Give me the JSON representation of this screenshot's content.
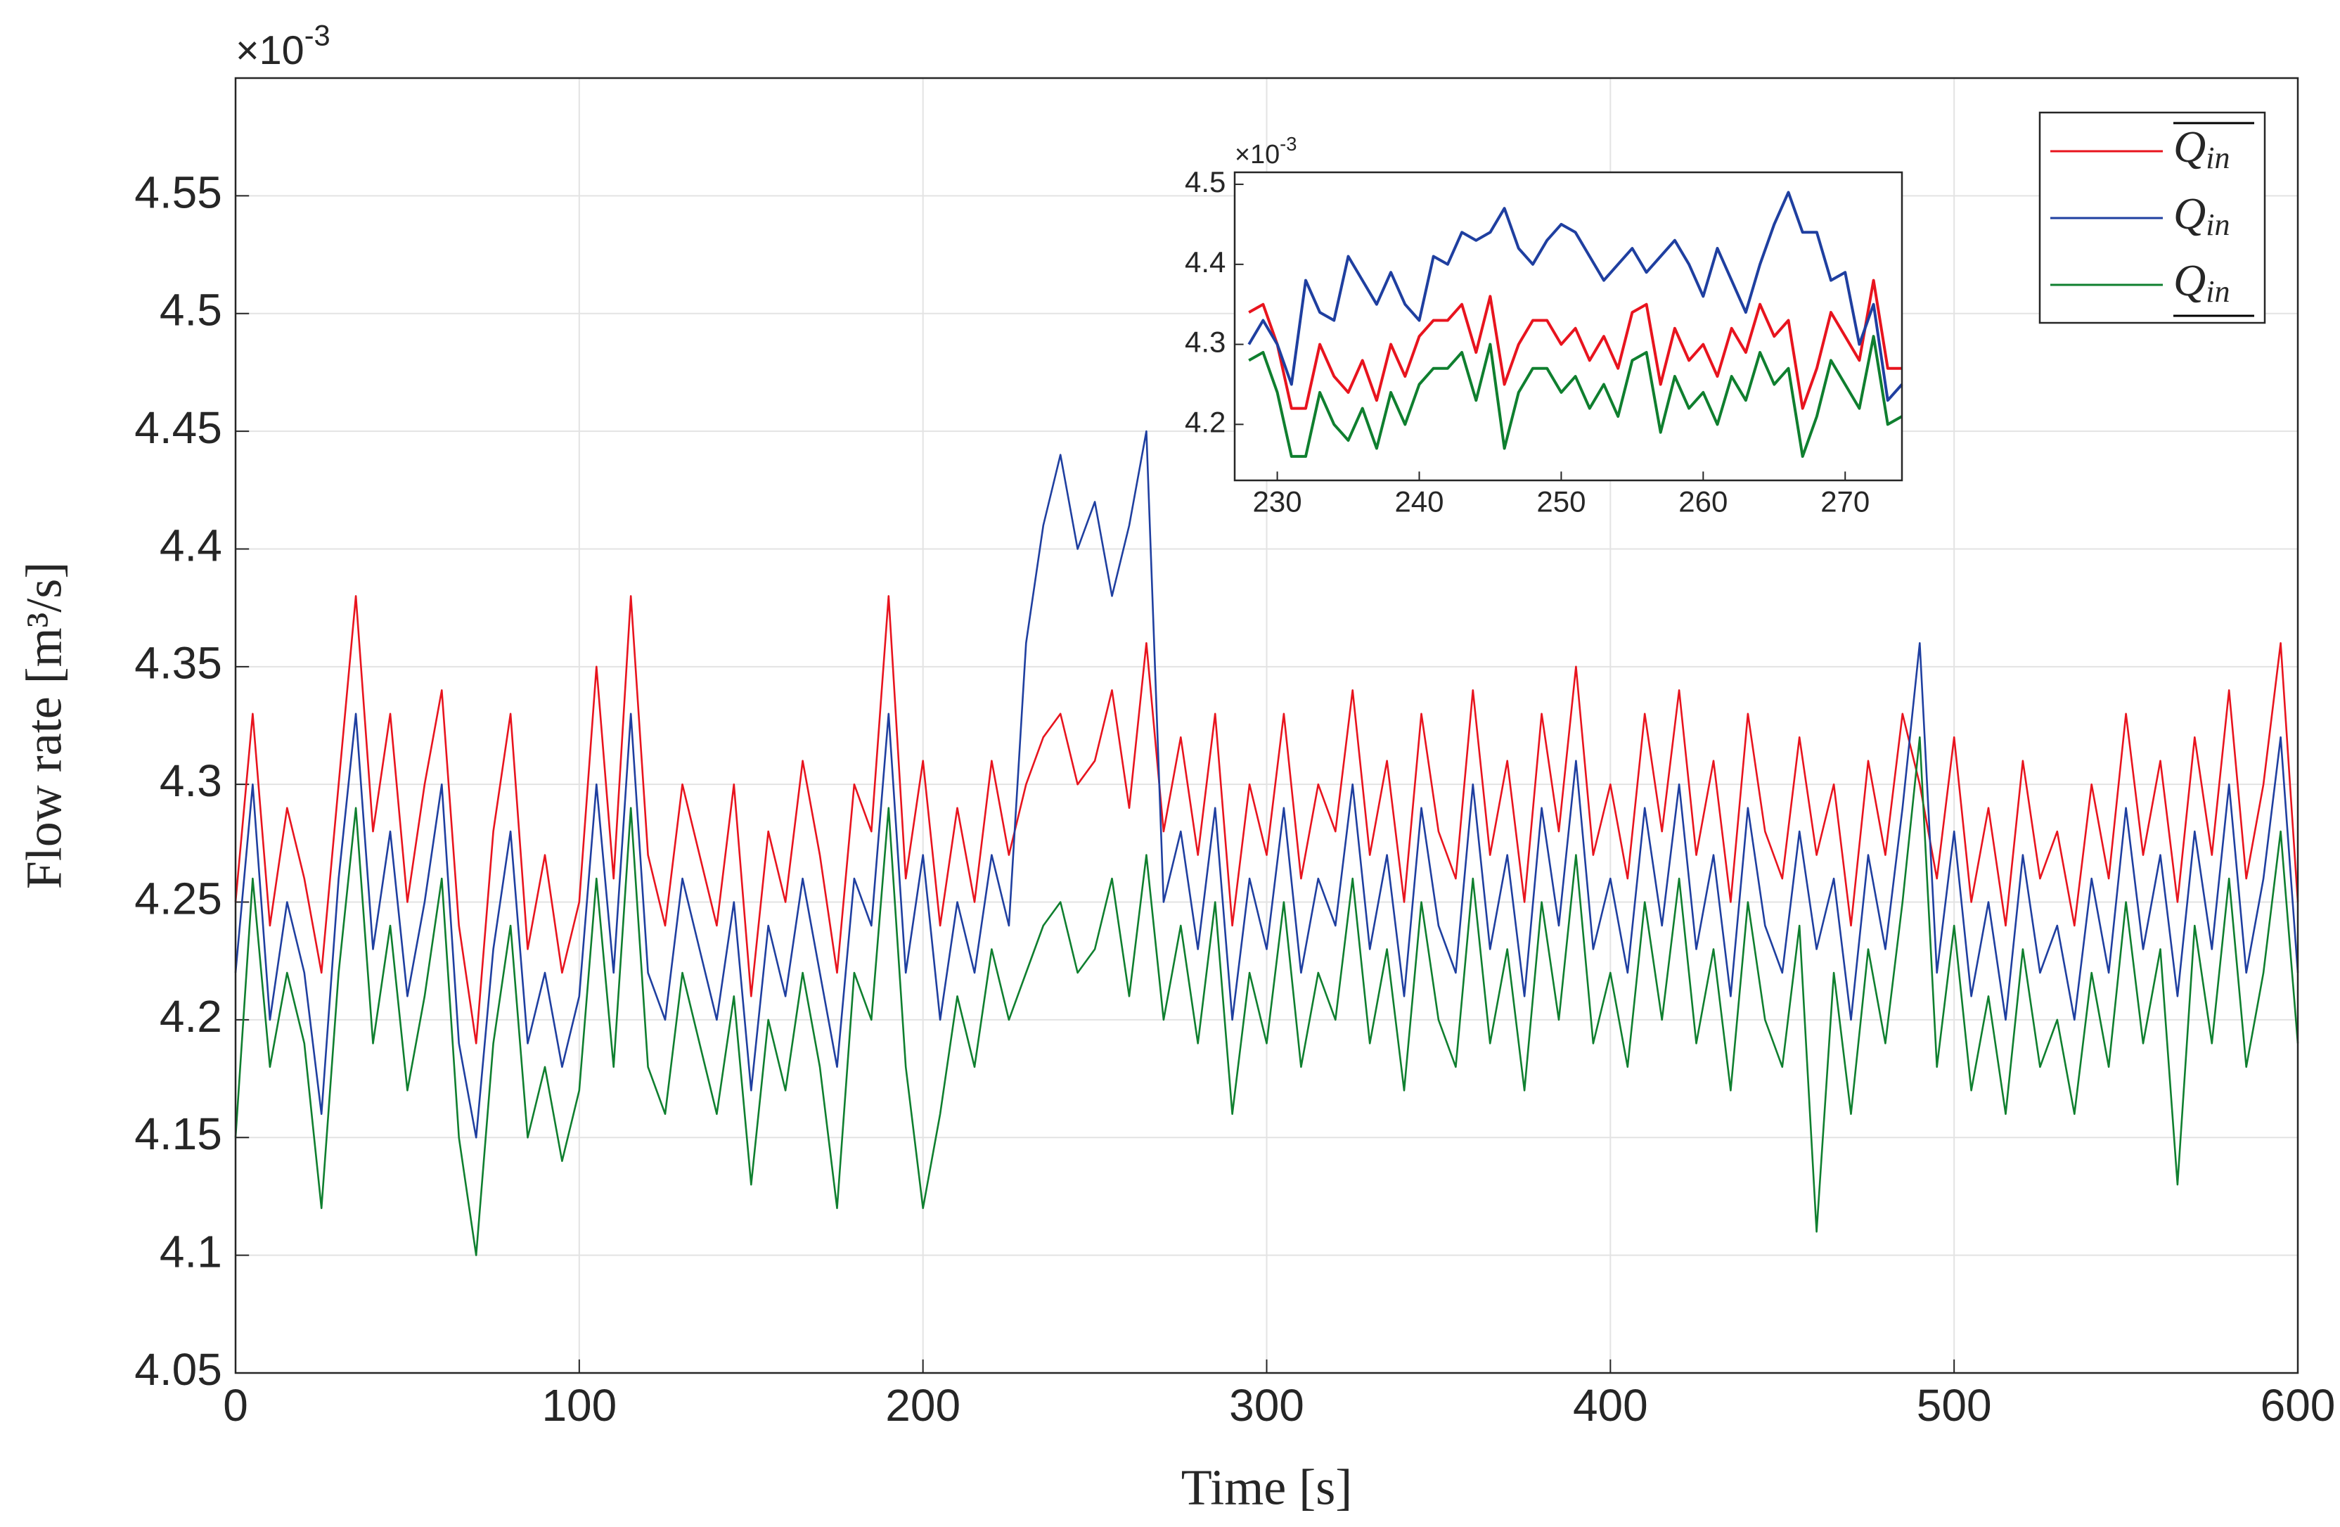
{
  "chart_data": [
    {
      "type": "line",
      "xlabel": "Time [s]",
      "ylabel": "Flow rate [m³/s]",
      "y_multiplier_base": "×10",
      "y_multiplier_exponent": "-3",
      "x": [
        0,
        5,
        10,
        15,
        20,
        25,
        30,
        35,
        40,
        45,
        50,
        55,
        60,
        65,
        70,
        75,
        80,
        85,
        90,
        95,
        100,
        105,
        110,
        115,
        120,
        125,
        130,
        135,
        140,
        145,
        150,
        155,
        160,
        165,
        170,
        175,
        180,
        185,
        190,
        195,
        200,
        205,
        210,
        215,
        220,
        225,
        230,
        235,
        240,
        245,
        250,
        255,
        260,
        265,
        270,
        275,
        280,
        285,
        290,
        295,
        300,
        305,
        310,
        315,
        320,
        325,
        330,
        335,
        340,
        345,
        350,
        355,
        360,
        365,
        370,
        375,
        380,
        385,
        390,
        395,
        400,
        405,
        410,
        415,
        420,
        425,
        430,
        435,
        440,
        445,
        450,
        455,
        460,
        465,
        470,
        475,
        480,
        485,
        490,
        495,
        500,
        505,
        510,
        515,
        520,
        525,
        530,
        535,
        540,
        545,
        550,
        555,
        560,
        565,
        570,
        575,
        580,
        585,
        590,
        595,
        600
      ],
      "series": [
        {
          "name": "Q",
          "subscript": "in",
          "decoration": "overline",
          "color": "#e8141e",
          "values": [
            4.25,
            4.33,
            4.24,
            4.29,
            4.26,
            4.22,
            4.3,
            4.38,
            4.28,
            4.33,
            4.25,
            4.3,
            4.34,
            4.24,
            4.19,
            4.28,
            4.33,
            4.23,
            4.27,
            4.22,
            4.25,
            4.35,
            4.26,
            4.38,
            4.27,
            4.24,
            4.3,
            4.27,
            4.24,
            4.3,
            4.21,
            4.28,
            4.25,
            4.31,
            4.27,
            4.22,
            4.3,
            4.28,
            4.38,
            4.26,
            4.31,
            4.24,
            4.29,
            4.25,
            4.31,
            4.27,
            4.3,
            4.32,
            4.33,
            4.3,
            4.31,
            4.34,
            4.29,
            4.36,
            4.28,
            4.32,
            4.27,
            4.33,
            4.24,
            4.3,
            4.27,
            4.33,
            4.26,
            4.3,
            4.28,
            4.34,
            4.27,
            4.31,
            4.25,
            4.33,
            4.28,
            4.26,
            4.34,
            4.27,
            4.31,
            4.25,
            4.33,
            4.28,
            4.35,
            4.27,
            4.3,
            4.26,
            4.33,
            4.28,
            4.34,
            4.27,
            4.31,
            4.25,
            4.33,
            4.28,
            4.26,
            4.32,
            4.27,
            4.3,
            4.24,
            4.31,
            4.27,
            4.33,
            4.3,
            4.26,
            4.32,
            4.25,
            4.29,
            4.24,
            4.31,
            4.26,
            4.28,
            4.24,
            4.3,
            4.26,
            4.33,
            4.27,
            4.31,
            4.25,
            4.32,
            4.27,
            4.34,
            4.26,
            4.3,
            4.36,
            4.25
          ]
        },
        {
          "name": "Q",
          "subscript": "in",
          "decoration": "none",
          "color": "#1f3fa0",
          "values": [
            4.22,
            4.3,
            4.2,
            4.25,
            4.22,
            4.16,
            4.26,
            4.33,
            4.23,
            4.28,
            4.21,
            4.25,
            4.3,
            4.19,
            4.15,
            4.23,
            4.28,
            4.19,
            4.22,
            4.18,
            4.21,
            4.3,
            4.22,
            4.33,
            4.22,
            4.2,
            4.26,
            4.23,
            4.2,
            4.25,
            4.17,
            4.24,
            4.21,
            4.26,
            4.22,
            4.18,
            4.26,
            4.24,
            4.33,
            4.22,
            4.27,
            4.2,
            4.25,
            4.22,
            4.27,
            4.24,
            4.36,
            4.41,
            4.44,
            4.4,
            4.42,
            4.38,
            4.41,
            4.45,
            4.25,
            4.28,
            4.23,
            4.29,
            4.2,
            4.26,
            4.23,
            4.29,
            4.22,
            4.26,
            4.24,
            4.3,
            4.23,
            4.27,
            4.21,
            4.29,
            4.24,
            4.22,
            4.3,
            4.23,
            4.27,
            4.21,
            4.29,
            4.24,
            4.31,
            4.23,
            4.26,
            4.22,
            4.29,
            4.24,
            4.3,
            4.23,
            4.27,
            4.21,
            4.29,
            4.24,
            4.22,
            4.28,
            4.23,
            4.26,
            4.2,
            4.27,
            4.23,
            4.29,
            4.36,
            4.22,
            4.28,
            4.21,
            4.25,
            4.2,
            4.27,
            4.22,
            4.24,
            4.2,
            4.26,
            4.22,
            4.29,
            4.23,
            4.27,
            4.21,
            4.28,
            4.23,
            4.3,
            4.22,
            4.26,
            4.32,
            4.22
          ]
        },
        {
          "name": "Q",
          "subscript": "in",
          "decoration": "underline",
          "color": "#0f7f2f",
          "values": [
            4.15,
            4.26,
            4.18,
            4.22,
            4.19,
            4.12,
            4.22,
            4.29,
            4.19,
            4.24,
            4.17,
            4.21,
            4.26,
            4.15,
            4.1,
            4.19,
            4.24,
            4.15,
            4.18,
            4.14,
            4.17,
            4.26,
            4.18,
            4.29,
            4.18,
            4.16,
            4.22,
            4.19,
            4.16,
            4.21,
            4.13,
            4.2,
            4.17,
            4.22,
            4.18,
            4.12,
            4.22,
            4.2,
            4.29,
            4.18,
            4.12,
            4.16,
            4.21,
            4.18,
            4.23,
            4.2,
            4.22,
            4.24,
            4.25,
            4.22,
            4.23,
            4.26,
            4.21,
            4.27,
            4.2,
            4.24,
            4.19,
            4.25,
            4.16,
            4.22,
            4.19,
            4.25,
            4.18,
            4.22,
            4.2,
            4.26,
            4.19,
            4.23,
            4.17,
            4.25,
            4.2,
            4.18,
            4.26,
            4.19,
            4.23,
            4.17,
            4.25,
            4.2,
            4.27,
            4.19,
            4.22,
            4.18,
            4.25,
            4.2,
            4.26,
            4.19,
            4.23,
            4.17,
            4.25,
            4.2,
            4.18,
            4.24,
            4.11,
            4.22,
            4.16,
            4.23,
            4.19,
            4.25,
            4.32,
            4.18,
            4.24,
            4.17,
            4.21,
            4.16,
            4.23,
            4.18,
            4.2,
            4.16,
            4.22,
            4.18,
            4.25,
            4.19,
            4.23,
            4.13,
            4.24,
            4.19,
            4.26,
            4.18,
            4.22,
            4.28,
            4.19
          ]
        }
      ],
      "xlim": [
        0,
        600
      ],
      "xticks": [
        0,
        100,
        200,
        300,
        400,
        500,
        600
      ],
      "ylim": [
        4.05,
        4.6
      ],
      "yticks": [
        4.05,
        4.1,
        4.15,
        4.2,
        4.25,
        4.3,
        4.35,
        4.4,
        4.45,
        4.5,
        4.55
      ],
      "grid": true,
      "legend": "upper right"
    },
    {
      "type": "line",
      "y_multiplier_base": "×10",
      "y_multiplier_exponent": "-3",
      "x": [
        228,
        229,
        230,
        231,
        232,
        233,
        234,
        235,
        236,
        237,
        238,
        239,
        240,
        241,
        242,
        243,
        244,
        245,
        246,
        247,
        248,
        249,
        250,
        251,
        252,
        253,
        254,
        255,
        256,
        257,
        258,
        259,
        260,
        261,
        262,
        263,
        264,
        265,
        266,
        267,
        268,
        269,
        270,
        271,
        272,
        273,
        274
      ],
      "series": [
        {
          "color": "#e8141e",
          "values": [
            4.34,
            4.35,
            4.3,
            4.22,
            4.22,
            4.3,
            4.26,
            4.24,
            4.28,
            4.23,
            4.3,
            4.26,
            4.31,
            4.33,
            4.33,
            4.35,
            4.29,
            4.36,
            4.25,
            4.3,
            4.33,
            4.33,
            4.3,
            4.32,
            4.28,
            4.31,
            4.27,
            4.34,
            4.35,
            4.25,
            4.32,
            4.28,
            4.3,
            4.26,
            4.32,
            4.29,
            4.35,
            4.31,
            4.33,
            4.22,
            4.27,
            4.34,
            4.31,
            4.28,
            4.38,
            4.27,
            4.27
          ]
        },
        {
          "color": "#1f3fa0",
          "values": [
            4.3,
            4.33,
            4.3,
            4.25,
            4.38,
            4.34,
            4.33,
            4.41,
            4.38,
            4.35,
            4.39,
            4.35,
            4.33,
            4.41,
            4.4,
            4.44,
            4.43,
            4.44,
            4.47,
            4.42,
            4.4,
            4.43,
            4.45,
            4.44,
            4.41,
            4.38,
            4.4,
            4.42,
            4.39,
            4.41,
            4.43,
            4.4,
            4.36,
            4.42,
            4.38,
            4.34,
            4.4,
            4.45,
            4.49,
            4.44,
            4.44,
            4.38,
            4.39,
            4.3,
            4.35,
            4.23,
            4.25
          ]
        },
        {
          "color": "#0f7f2f",
          "values": [
            4.28,
            4.29,
            4.24,
            4.16,
            4.16,
            4.24,
            4.2,
            4.18,
            4.22,
            4.17,
            4.24,
            4.2,
            4.25,
            4.27,
            4.27,
            4.29,
            4.23,
            4.3,
            4.17,
            4.24,
            4.27,
            4.27,
            4.24,
            4.26,
            4.22,
            4.25,
            4.21,
            4.28,
            4.29,
            4.19,
            4.26,
            4.22,
            4.24,
            4.2,
            4.26,
            4.23,
            4.29,
            4.25,
            4.27,
            4.16,
            4.21,
            4.28,
            4.25,
            4.22,
            4.31,
            4.2,
            4.21
          ]
        }
      ],
      "xlim": [
        227,
        274
      ],
      "xticks": [
        230,
        240,
        250,
        260,
        270
      ],
      "ylim": [
        4.13,
        4.515
      ],
      "yticks": [
        4.2,
        4.3,
        4.4,
        4.5
      ],
      "grid": false
    }
  ]
}
